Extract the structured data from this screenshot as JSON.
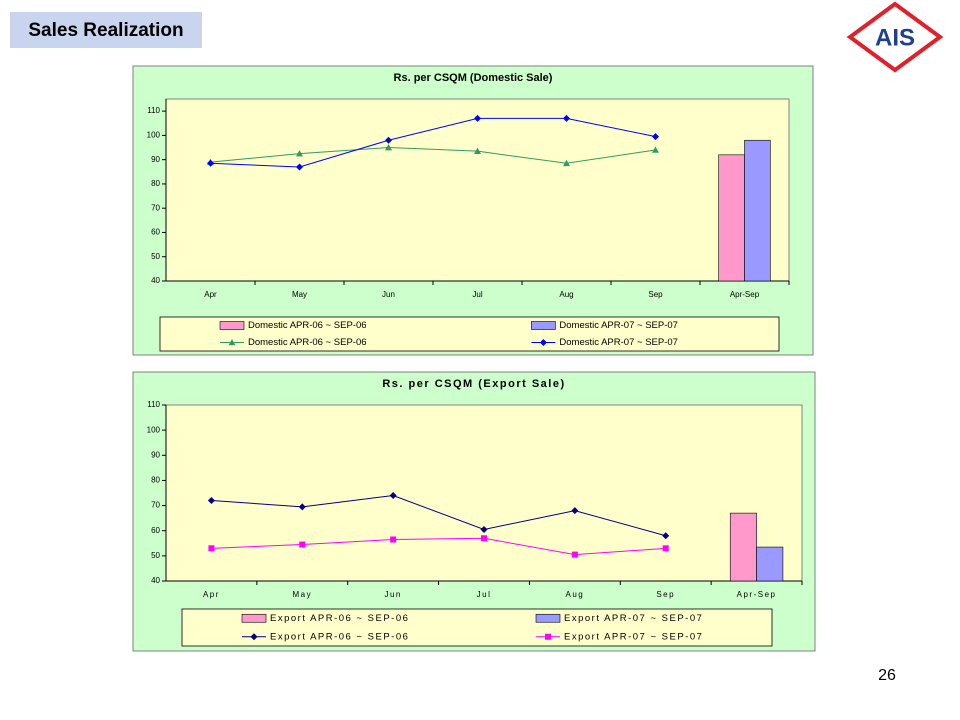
{
  "header": {
    "title": "Sales Realization",
    "logo": "AIS"
  },
  "page_number": "26",
  "chart_data": [
    {
      "type": "combo",
      "title": "Rs. per CSQM (Domestic Sale)",
      "categories": [
        "Apr",
        "May",
        "Jun",
        "Jul",
        "Aug",
        "Sep",
        "Apr-Sep"
      ],
      "ylim": [
        40,
        115
      ],
      "yticks": [
        40,
        50,
        60,
        70,
        80,
        90,
        100,
        110
      ],
      "grid": false,
      "legend": "bottom",
      "series": [
        {
          "name": "Domestic APR-06 ~ SEP-06",
          "type": "bar",
          "color": "#ff99cc",
          "values": [
            null,
            null,
            null,
            null,
            null,
            null,
            92
          ]
        },
        {
          "name": "Domestic APR-07 ~ SEP-07",
          "type": "bar",
          "color": "#9999ff",
          "values": [
            null,
            null,
            null,
            null,
            null,
            null,
            98
          ]
        },
        {
          "name": "Domestic APR-06 ~ SEP-06",
          "type": "line",
          "marker": "triangle",
          "color": "#339966",
          "values": [
            89,
            92.5,
            95,
            93.5,
            88.5,
            94,
            null
          ]
        },
        {
          "name": "Domestic APR-07 ~ SEP-07",
          "type": "line",
          "marker": "diamond",
          "color": "#0000ff",
          "values": [
            88.5,
            87,
            98,
            107,
            107,
            99.5,
            null
          ]
        }
      ]
    },
    {
      "type": "combo",
      "title": "Rs. per CSQM (Export Sale)",
      "categories": [
        "Apr",
        "May",
        "Jun",
        "Jul",
        "Aug",
        "Sep",
        "Apr-Sep"
      ],
      "ylim": [
        40,
        110
      ],
      "yticks": [
        40,
        50,
        60,
        70,
        80,
        90,
        100,
        110
      ],
      "grid": false,
      "legend": "bottom",
      "series": [
        {
          "name": "Export APR-06 ~ SEP-06",
          "type": "bar",
          "color": "#ff99cc",
          "values": [
            null,
            null,
            null,
            null,
            null,
            null,
            67
          ]
        },
        {
          "name": "Export APR-07 ~ SEP-07",
          "type": "bar",
          "color": "#9999ff",
          "values": [
            null,
            null,
            null,
            null,
            null,
            null,
            53.5
          ]
        },
        {
          "name": "Export APR-06 ~ SEP-06",
          "type": "line",
          "marker": "diamond",
          "color": "#000080",
          "values": [
            72,
            69.5,
            74,
            60.5,
            68,
            58,
            null
          ]
        },
        {
          "name": "Export APR-07 ~ SEP-07",
          "type": "line",
          "marker": "square",
          "color": "#ff00ff",
          "values": [
            53,
            54.5,
            56.5,
            57,
            50.5,
            53,
            null
          ]
        }
      ]
    }
  ]
}
